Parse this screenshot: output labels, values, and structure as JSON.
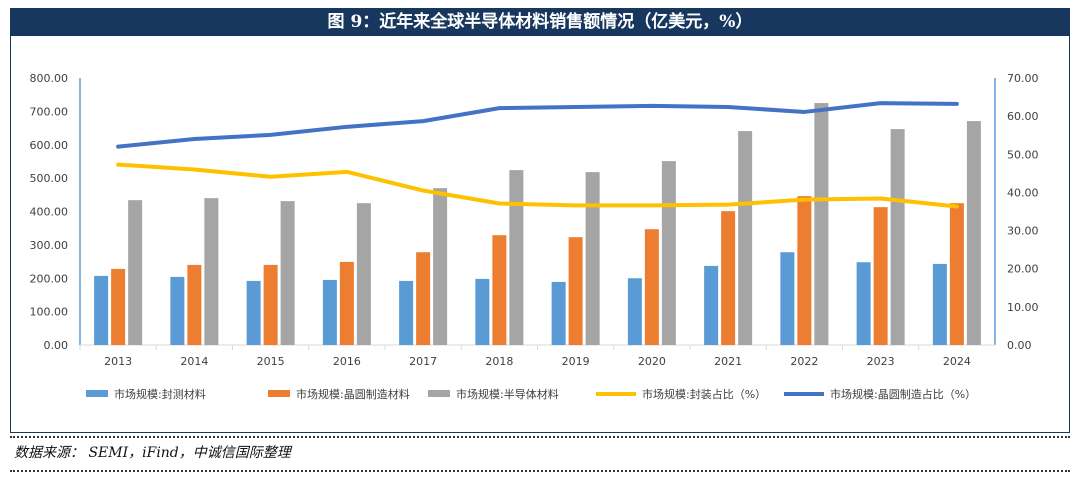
{
  "title": "图 9：近年来全球半导体材料销售额情况（亿美元，%）",
  "source": "数据来源：  SEMI，iFind，中诚信国际整理",
  "chart_data": {
    "type": "bar+line",
    "categories": [
      "2013",
      "2014",
      "2015",
      "2016",
      "2017",
      "2018",
      "2019",
      "2020",
      "2021",
      "2022",
      "2023",
      "2024"
    ],
    "y_left": {
      "range": [
        0,
        800
      ],
      "ticks": [
        "0.00",
        "100.00",
        "200.00",
        "300.00",
        "400.00",
        "500.00",
        "600.00",
        "700.00",
        "800.00"
      ]
    },
    "y_right": {
      "range": [
        0,
        70
      ],
      "ticks": [
        "0.00",
        "10.00",
        "20.00",
        "30.00",
        "40.00",
        "50.00",
        "60.00",
        "70.00"
      ]
    },
    "bar_series": [
      {
        "name": "市场规模:封测材料",
        "color": "#5b9bd5",
        "values": [
          207,
          204,
          192,
          195,
          192,
          198,
          189,
          200,
          237,
          278,
          248,
          243
        ]
      },
      {
        "name": "市场规模:晶圆制造材料",
        "color": "#ed7d31",
        "values": [
          228,
          240,
          240,
          249,
          278,
          329,
          323,
          347,
          401,
          446,
          413,
          425
        ]
      },
      {
        "name": "市场规模:半导体材料",
        "color": "#a5a5a5",
        "values": [
          434,
          440,
          431,
          425,
          470,
          524,
          518,
          551,
          641,
          725,
          647,
          671
        ]
      }
    ],
    "line_series": [
      {
        "name": "市场规模:封装占比（%）",
        "color": "#ffc000",
        "values": [
          47.3,
          46.0,
          44.1,
          45.4,
          40.5,
          37.1,
          36.6,
          36.6,
          36.8,
          38.1,
          38.4,
          36.3
        ]
      },
      {
        "name": "市场规模:晶圆制造占比（%）",
        "color": "#4472c4",
        "values": [
          52.0,
          54.0,
          55.1,
          57.2,
          58.7,
          62.1,
          62.4,
          62.7,
          62.4,
          61.1,
          63.4,
          63.2
        ]
      }
    ],
    "legend": "bottom",
    "grid": false
  }
}
